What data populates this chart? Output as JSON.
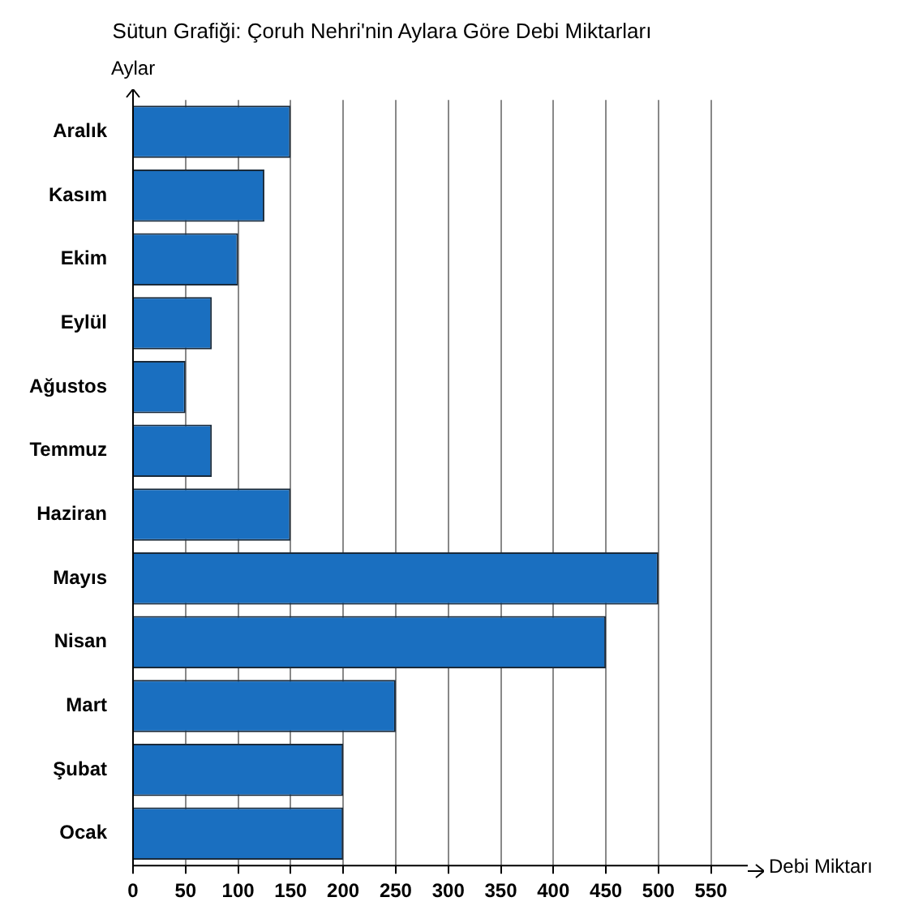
{
  "chart_data": {
    "type": "bar",
    "orientation": "horizontal",
    "title": "Sütun Grafiği: Çoruh Nehri'nin Aylara Göre Debi Miktarları",
    "xlabel": "Debi Miktarı",
    "ylabel": "Aylar",
    "categories": [
      "Aralık",
      "Kasım",
      "Ekim",
      "Eylül",
      "Ağustos",
      "Temmuz",
      "Haziran",
      "Mayıs",
      "Nisan",
      "Mart",
      "Şubat",
      "Ocak"
    ],
    "values": [
      150,
      125,
      100,
      75,
      50,
      75,
      150,
      500,
      450,
      250,
      200,
      200
    ],
    "color": "#1a6fc0",
    "xlim": [
      0,
      585
    ],
    "xticks": [
      0,
      50,
      100,
      150,
      200,
      250,
      300,
      350,
      400,
      450,
      500,
      550
    ],
    "grid": "x",
    "legend": false
  }
}
